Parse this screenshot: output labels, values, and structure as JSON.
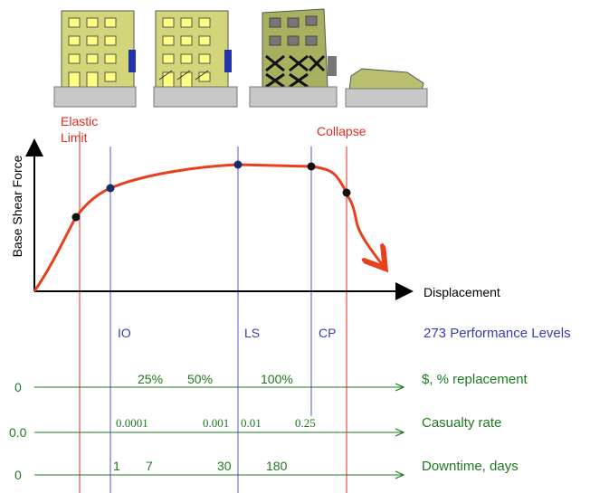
{
  "labels": {
    "elastic_limit": [
      "Elastic",
      "Limit"
    ],
    "collapse": "Collapse",
    "y_axis": "Base Shear Force",
    "x_axis": "Displacement"
  },
  "performance_levels": {
    "title": "273 Performance Levels",
    "levels": [
      "IO",
      "LS",
      "CP"
    ]
  },
  "scales": [
    {
      "title": "$, % replacement",
      "origin": "0",
      "ticks": [
        "25%",
        "50%",
        "100%"
      ]
    },
    {
      "title": "Casualty rate",
      "origin": "0.0",
      "ticks": [
        "0.0001",
        "0.001",
        "0.01",
        "0.25"
      ]
    },
    {
      "title": "Downtime, days",
      "origin": "0",
      "ticks": [
        "1",
        "7",
        "30",
        "180"
      ]
    }
  ]
}
